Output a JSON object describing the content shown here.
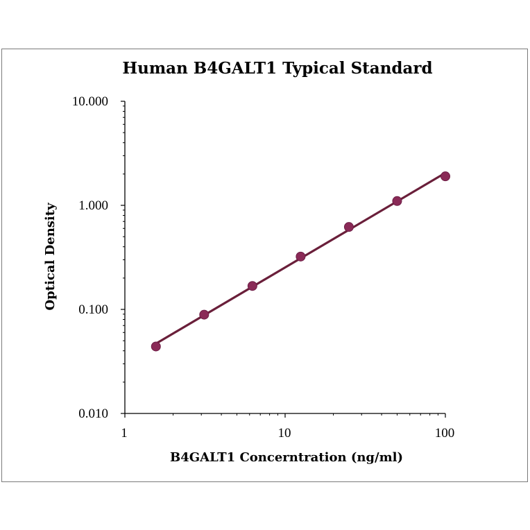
{
  "chart_data": {
    "type": "scatter",
    "title": "Human B4GALT1 Typical Standard",
    "xlabel": "B4GALT1 Concerntration (ng/ml)",
    "ylabel": "Optical Density",
    "x_scale": "log",
    "y_scale": "log",
    "xlim": [
      1,
      100
    ],
    "ylim": [
      0.01,
      10
    ],
    "x_ticks": [
      "1",
      "10",
      "100"
    ],
    "y_ticks": [
      "10.000",
      "1.000",
      "0.100",
      "0.010"
    ],
    "grid": false,
    "legend": "none",
    "trendline": "power fit",
    "series": [
      {
        "x": [
          1.5625,
          3.125,
          6.25,
          12.5,
          25,
          50,
          100
        ],
        "y": [
          0.044,
          0.089,
          0.168,
          0.322,
          0.62,
          1.1,
          1.9
        ]
      }
    ],
    "colors": {
      "marker": "#8a2a57",
      "line": "#6a1f3a",
      "axis": "#000000",
      "frame": "#7a7a7a"
    }
  }
}
